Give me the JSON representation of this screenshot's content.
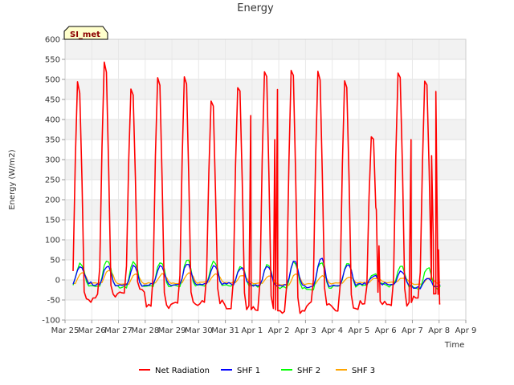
{
  "chart_data": {
    "type": "line",
    "title": "Energy",
    "xlabel": "Time",
    "ylabel": "Energy (W/m2)",
    "site_label": "SI_met",
    "ylim": [
      -100,
      600
    ],
    "yticks": [
      -100,
      -50,
      0,
      50,
      100,
      150,
      200,
      250,
      300,
      350,
      400,
      450,
      500,
      550,
      600
    ],
    "xlim": [
      0,
      15
    ],
    "x_unit": "days since Mar 25",
    "xtick_labels": [
      "Mar 25",
      "Mar 26",
      "Mar 27",
      "Mar 28",
      "Mar 29",
      "Mar 30",
      "Mar 31",
      "Apr 1",
      "Apr 2",
      "Apr 3",
      "Apr 4",
      "Apr 5",
      "Apr 6",
      "Apr 7",
      "Apr 8",
      "Apr 9"
    ],
    "data_start": 0.3,
    "data_end": 14.1,
    "step_days": 0.0833,
    "series": [
      {
        "name": "Net Radiation",
        "color": "#ff0000",
        "night_values": [
          -52,
          -40,
          -28,
          -65,
          -60,
          -55,
          -70,
          -72,
          -78,
          -60,
          -75,
          -55,
          -60,
          -40,
          -60
        ],
        "daily_peaks": [
          510,
          560,
          500,
          530,
          525,
          465,
          505,
          545,
          545,
          540,
          520,
          375,
          545,
          520
        ],
        "spikes": [
          {
            "x": 6.95,
            "y": 410
          },
          {
            "x": 7.85,
            "y": 350
          },
          {
            "x": 7.95,
            "y": 475
          },
          {
            "x": 11.65,
            "y": 175
          },
          {
            "x": 11.75,
            "y": 85
          },
          {
            "x": 12.95,
            "y": 350
          },
          {
            "x": 13.72,
            "y": 310
          },
          {
            "x": 13.78,
            "y": 110
          },
          {
            "x": 13.88,
            "y": 470
          },
          {
            "x": 13.98,
            "y": 75
          },
          {
            "x": 14.02,
            "y": -60
          }
        ]
      },
      {
        "name": "SHF 1",
        "color": "#0000ff",
        "night_values": [
          -8,
          -12,
          -15,
          -12,
          -12,
          -10,
          -10,
          -12,
          -15,
          -18,
          -12,
          -10,
          -12,
          -20,
          -10
        ],
        "daily_peaks": [
          30,
          35,
          35,
          35,
          40,
          35,
          30,
          35,
          50,
          55,
          40,
          10,
          20,
          5
        ]
      },
      {
        "name": "SHF 2",
        "color": "#00ff00",
        "night_values": [
          -12,
          -15,
          -18,
          -15,
          -15,
          -12,
          -12,
          -15,
          -20,
          -22,
          -15,
          -12,
          -15,
          -22,
          -12
        ],
        "daily_peaks": [
          40,
          50,
          45,
          45,
          50,
          45,
          35,
          40,
          45,
          45,
          45,
          15,
          35,
          30
        ]
      },
      {
        "name": "SHF 3",
        "color": "#ffa500",
        "night_values": [
          -10,
          -8,
          -10,
          -8,
          -8,
          -6,
          -6,
          -8,
          -12,
          -10,
          -8,
          -6,
          -6,
          -10,
          -6
        ],
        "daily_peaks": [
          18,
          25,
          15,
          15,
          18,
          15,
          12,
          10,
          15,
          10,
          8,
          5,
          5,
          5
        ]
      }
    ],
    "legend_position": "bottom"
  }
}
